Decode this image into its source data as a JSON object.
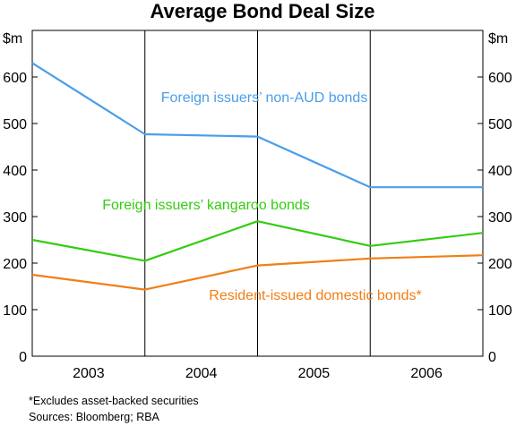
{
  "chart_data": {
    "type": "line",
    "title": "Average Bond Deal Size",
    "ylabel_left": "$m",
    "ylabel_right": "$m",
    "ylim": [
      0,
      700
    ],
    "yticks": [
      0,
      100,
      200,
      300,
      400,
      500,
      600
    ],
    "xlim": [
      2002.5,
      2006.5
    ],
    "x_period_labels": [
      "2003",
      "2004",
      "2005",
      "2006"
    ],
    "grid": "vertical year dividers only",
    "x": [
      2002.5,
      2003.5,
      2004.5,
      2005.5,
      2006.5
    ],
    "series": [
      {
        "name": "Foreign issuers’ non-AUD bonds",
        "color": "#4a9eea",
        "values": [
          630,
          477,
          472,
          363,
          363
        ]
      },
      {
        "name": "Foreign issuers’ kangaroo bonds",
        "color": "#33cc11",
        "values": [
          250,
          205,
          290,
          237,
          265
        ]
      },
      {
        "name": "Resident-issued domestic bonds*",
        "color": "#f07f15",
        "values": [
          175,
          143,
          195,
          210,
          217
        ]
      }
    ]
  },
  "footnote": "*Excludes asset-backed securities",
  "sources": "Sources: Bloomberg; RBA"
}
